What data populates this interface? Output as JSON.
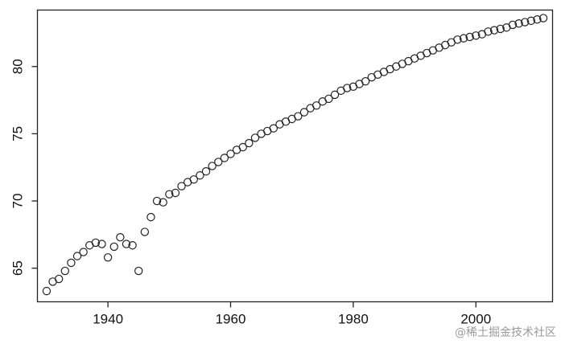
{
  "chart_data": {
    "type": "scatter",
    "title": "",
    "xlabel": "",
    "ylabel": "",
    "xlim": [
      1928.5,
      2012.5
    ],
    "ylim": [
      62.5,
      84.2
    ],
    "x_ticks": [
      1940,
      1960,
      1980,
      2000
    ],
    "y_ticks": [
      65,
      70,
      75,
      80
    ],
    "x_tick_labels": [
      "1940",
      "1960",
      "1980",
      "2000"
    ],
    "y_tick_labels": [
      "65",
      "70",
      "75",
      "80"
    ],
    "grid": false,
    "legend": "none",
    "marker": "open-circle",
    "points": [
      {
        "x": 1930,
        "y": 63.3
      },
      {
        "x": 1931,
        "y": 64.0
      },
      {
        "x": 1932,
        "y": 64.2
      },
      {
        "x": 1933,
        "y": 64.8
      },
      {
        "x": 1934,
        "y": 65.4
      },
      {
        "x": 1935,
        "y": 65.9
      },
      {
        "x": 1936,
        "y": 66.2
      },
      {
        "x": 1937,
        "y": 66.7
      },
      {
        "x": 1938,
        "y": 66.9
      },
      {
        "x": 1939,
        "y": 66.8
      },
      {
        "x": 1940,
        "y": 65.8
      },
      {
        "x": 1941,
        "y": 66.6
      },
      {
        "x": 1942,
        "y": 67.3
      },
      {
        "x": 1943,
        "y": 66.8
      },
      {
        "x": 1944,
        "y": 66.7
      },
      {
        "x": 1945,
        "y": 64.8
      },
      {
        "x": 1946,
        "y": 67.7
      },
      {
        "x": 1947,
        "y": 68.8
      },
      {
        "x": 1948,
        "y": 70.0
      },
      {
        "x": 1949,
        "y": 69.9
      },
      {
        "x": 1950,
        "y": 70.5
      },
      {
        "x": 1951,
        "y": 70.6
      },
      {
        "x": 1952,
        "y": 71.1
      },
      {
        "x": 1953,
        "y": 71.4
      },
      {
        "x": 1954,
        "y": 71.6
      },
      {
        "x": 1955,
        "y": 71.9
      },
      {
        "x": 1956,
        "y": 72.2
      },
      {
        "x": 1957,
        "y": 72.6
      },
      {
        "x": 1958,
        "y": 72.9
      },
      {
        "x": 1959,
        "y": 73.2
      },
      {
        "x": 1960,
        "y": 73.5
      },
      {
        "x": 1961,
        "y": 73.8
      },
      {
        "x": 1962,
        "y": 74.0
      },
      {
        "x": 1963,
        "y": 74.3
      },
      {
        "x": 1964,
        "y": 74.7
      },
      {
        "x": 1965,
        "y": 75.0
      },
      {
        "x": 1966,
        "y": 75.2
      },
      {
        "x": 1967,
        "y": 75.4
      },
      {
        "x": 1968,
        "y": 75.7
      },
      {
        "x": 1969,
        "y": 75.9
      },
      {
        "x": 1970,
        "y": 76.1
      },
      {
        "x": 1971,
        "y": 76.3
      },
      {
        "x": 1972,
        "y": 76.6
      },
      {
        "x": 1973,
        "y": 76.9
      },
      {
        "x": 1974,
        "y": 77.1
      },
      {
        "x": 1975,
        "y": 77.4
      },
      {
        "x": 1976,
        "y": 77.6
      },
      {
        "x": 1977,
        "y": 77.9
      },
      {
        "x": 1978,
        "y": 78.2
      },
      {
        "x": 1979,
        "y": 78.4
      },
      {
        "x": 1980,
        "y": 78.5
      },
      {
        "x": 1981,
        "y": 78.7
      },
      {
        "x": 1982,
        "y": 78.9
      },
      {
        "x": 1983,
        "y": 79.2
      },
      {
        "x": 1984,
        "y": 79.4
      },
      {
        "x": 1985,
        "y": 79.6
      },
      {
        "x": 1986,
        "y": 79.8
      },
      {
        "x": 1987,
        "y": 80.0
      },
      {
        "x": 1988,
        "y": 80.2
      },
      {
        "x": 1989,
        "y": 80.4
      },
      {
        "x": 1990,
        "y": 80.6
      },
      {
        "x": 1991,
        "y": 80.8
      },
      {
        "x": 1992,
        "y": 81.0
      },
      {
        "x": 1993,
        "y": 81.2
      },
      {
        "x": 1994,
        "y": 81.4
      },
      {
        "x": 1995,
        "y": 81.6
      },
      {
        "x": 1996,
        "y": 81.8
      },
      {
        "x": 1997,
        "y": 82.0
      },
      {
        "x": 1998,
        "y": 82.1
      },
      {
        "x": 1999,
        "y": 82.2
      },
      {
        "x": 2000,
        "y": 82.3
      },
      {
        "x": 2001,
        "y": 82.4
      },
      {
        "x": 2002,
        "y": 82.6
      },
      {
        "x": 2003,
        "y": 82.7
      },
      {
        "x": 2004,
        "y": 82.8
      },
      {
        "x": 2005,
        "y": 82.9
      },
      {
        "x": 2006,
        "y": 83.1
      },
      {
        "x": 2007,
        "y": 83.2
      },
      {
        "x": 2008,
        "y": 83.3
      },
      {
        "x": 2009,
        "y": 83.4
      },
      {
        "x": 2010,
        "y": 83.5
      },
      {
        "x": 2011,
        "y": 83.6
      }
    ]
  },
  "watermark": {
    "text": "@稀土掘金技术社区"
  },
  "colors": {
    "ink": "#222222",
    "background": "#ffffff",
    "watermark": "#9a9a9a"
  }
}
